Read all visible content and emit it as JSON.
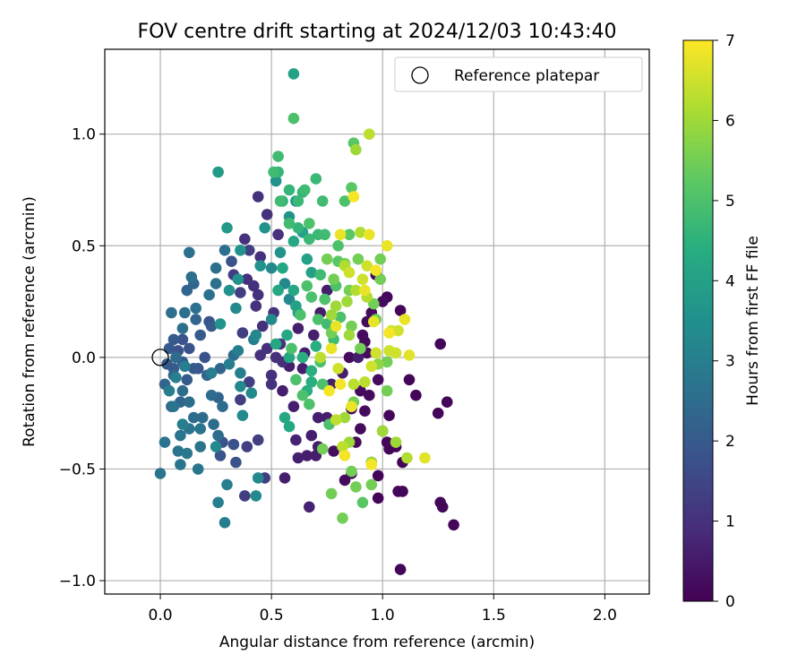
{
  "chart_data": {
    "type": "scatter",
    "title": "FOV centre drift starting at 2024/12/03 10:43:40",
    "xlabel": "Angular distance from reference (arcmin)",
    "ylabel": "Rotation from reference (arcmin)",
    "xlim": [
      -0.25,
      2.2
    ],
    "ylim": [
      -1.06,
      1.38
    ],
    "x_ticks": [
      0.0,
      0.5,
      1.0,
      1.5,
      2.0
    ],
    "x_tick_labels": [
      "0.0",
      "0.5",
      "1.0",
      "1.5",
      "2.0"
    ],
    "y_ticks": [
      -1.0,
      -0.5,
      0.0,
      0.5,
      1.0
    ],
    "y_tick_labels": [
      "−1.0",
      "−0.5",
      "0.0",
      "0.5",
      "1.0"
    ],
    "grid": true,
    "legend": {
      "placement": "top-right",
      "entries": [
        "Reference platepar"
      ]
    },
    "reference_point": {
      "x": 0.0,
      "y": 0.0
    },
    "colorbar": {
      "label": "Hours from first FF file",
      "colormap": "viridis",
      "range": [
        0,
        7
      ],
      "ticks": [
        "0",
        "1",
        "2",
        "3",
        "4",
        "5",
        "6",
        "7"
      ],
      "colors": [
        "#440154",
        "#472c7a",
        "#3b518b",
        "#2c718e",
        "#21908d",
        "#27ad81",
        "#5cc863",
        "#aadc32",
        "#fde725"
      ]
    },
    "columns": [
      "x",
      "y",
      "hours"
    ],
    "points": [
      [
        1.26,
        0.06,
        0.1
      ],
      [
        1.29,
        -0.2,
        0.1
      ],
      [
        1.32,
        -0.75,
        0.1
      ],
      [
        1.26,
        -0.65,
        0.1
      ],
      [
        1.27,
        -0.67,
        0.1
      ],
      [
        1.08,
        -0.95,
        0.1
      ],
      [
        1.09,
        -0.47,
        0.1
      ],
      [
        1.09,
        -0.6,
        0.1
      ],
      [
        1.07,
        -0.6,
        0.1
      ],
      [
        1.06,
        -0.4,
        0.1
      ],
      [
        1.02,
        -0.38,
        0.1
      ],
      [
        1.03,
        -0.41,
        0.1
      ],
      [
        0.98,
        -0.63,
        0.1
      ],
      [
        1.08,
        0.21,
        0.1
      ],
      [
        1.12,
        -0.1,
        0.1
      ],
      [
        1.25,
        -0.25,
        0.1
      ],
      [
        1.15,
        -0.17,
        0.1
      ],
      [
        1.03,
        -0.26,
        0.1
      ],
      [
        0.98,
        -0.53,
        0.1
      ],
      [
        1.02,
        0.27,
        0.1
      ],
      [
        1.0,
        0.25,
        0.2
      ],
      [
        0.95,
        -0.47,
        0.2
      ],
      [
        0.86,
        -0.52,
        0.2
      ],
      [
        0.83,
        -0.55,
        0.2
      ],
      [
        0.92,
        -0.24,
        0.2
      ],
      [
        0.94,
        -0.17,
        0.2
      ],
      [
        0.9,
        -0.32,
        0.2
      ],
      [
        0.88,
        -0.38,
        0.2
      ],
      [
        0.92,
        0.07,
        0.2
      ],
      [
        0.93,
        0.16,
        0.2
      ],
      [
        0.95,
        0.2,
        0.2
      ],
      [
        0.91,
        0.1,
        0.2
      ],
      [
        0.78,
        -0.42,
        0.2
      ],
      [
        0.86,
        -0.23,
        0.2
      ],
      [
        0.97,
        0.37,
        0.2
      ],
      [
        1.0,
        -0.33,
        0.2
      ],
      [
        0.98,
        -0.1,
        0.2
      ],
      [
        0.93,
        0.02,
        0.2
      ],
      [
        0.9,
        -0.15,
        0.2
      ],
      [
        0.85,
        0.0,
        0.2
      ],
      [
        0.89,
        0.0,
        0.6
      ],
      [
        0.82,
        -0.07,
        0.6
      ],
      [
        0.77,
        -0.12,
        0.6
      ],
      [
        0.71,
        -0.27,
        0.6
      ],
      [
        0.75,
        -0.27,
        0.6
      ],
      [
        0.71,
        -0.4,
        0.6
      ],
      [
        0.68,
        -0.35,
        0.6
      ],
      [
        0.66,
        -0.44,
        0.6
      ],
      [
        0.7,
        -0.44,
        0.6
      ],
      [
        0.62,
        -0.45,
        0.6
      ],
      [
        0.69,
        0.1,
        0.6
      ],
      [
        0.72,
        0.2,
        0.6
      ],
      [
        0.75,
        0.3,
        0.6
      ],
      [
        0.65,
        0.02,
        0.6
      ],
      [
        0.64,
        -0.05,
        0.6
      ],
      [
        0.6,
        -0.22,
        0.6
      ],
      [
        0.56,
        -0.54,
        0.6
      ],
      [
        0.55,
        -0.15,
        0.6
      ],
      [
        0.58,
        -0.04,
        0.6
      ],
      [
        0.62,
        0.13,
        0.6
      ],
      [
        0.67,
        -0.67,
        0.7
      ],
      [
        0.61,
        -0.37,
        0.7
      ],
      [
        0.5,
        -0.12,
        1.0
      ],
      [
        0.52,
        0.0,
        1.0
      ],
      [
        0.48,
        0.04,
        1.0
      ],
      [
        0.5,
        -0.08,
        1.0
      ],
      [
        0.45,
        0.01,
        1.0
      ],
      [
        0.54,
        0.06,
        1.0
      ],
      [
        0.55,
        -0.02,
        1.0
      ],
      [
        0.46,
        0.14,
        1.0
      ],
      [
        0.51,
        0.2,
        1.0
      ],
      [
        0.43,
        0.23,
        1.0
      ],
      [
        0.44,
        0.28,
        1.0
      ],
      [
        0.42,
        0.32,
        1.0
      ],
      [
        0.53,
        0.55,
        1.0
      ],
      [
        0.48,
        0.64,
        1.0
      ],
      [
        0.44,
        0.72,
        1.0
      ],
      [
        0.45,
        0.45,
        1.0
      ],
      [
        0.39,
        0.35,
        1.0
      ],
      [
        0.38,
        0.53,
        1.0
      ],
      [
        0.4,
        0.48,
        1.3
      ],
      [
        0.36,
        0.29,
        1.3
      ],
      [
        0.33,
        0.37,
        1.3
      ],
      [
        0.37,
        0.11,
        1.3
      ],
      [
        0.4,
        -0.11,
        1.3
      ],
      [
        0.36,
        -0.19,
        1.3
      ],
      [
        0.44,
        -0.37,
        1.3
      ],
      [
        0.47,
        -0.54,
        1.3
      ],
      [
        0.38,
        -0.62,
        1.3
      ],
      [
        0.39,
        -0.4,
        1.3
      ],
      [
        0.33,
        -0.39,
        1.8
      ],
      [
        0.28,
        -0.38,
        1.8
      ],
      [
        0.34,
        -0.47,
        1.8
      ],
      [
        0.27,
        -0.44,
        1.8
      ],
      [
        0.32,
        0.43,
        1.8
      ],
      [
        0.22,
        0.16,
        1.8
      ],
      [
        0.2,
        0.0,
        1.8
      ],
      [
        0.17,
        -0.05,
        1.8
      ],
      [
        0.13,
        0.04,
        1.8
      ],
      [
        0.1,
        0.08,
        1.8
      ],
      [
        0.08,
        0.03,
        1.8
      ],
      [
        0.1,
        -0.02,
        2.0
      ],
      [
        0.06,
        0.08,
        2.0
      ],
      [
        0.04,
        0.04,
        2.0
      ],
      [
        0.03,
        -0.03,
        2.0
      ],
      [
        0.06,
        -0.05,
        2.0
      ],
      [
        0.12,
        -0.1,
        2.0
      ],
      [
        0.15,
        -0.05,
        2.0
      ],
      [
        0.18,
        0.1,
        2.0
      ],
      [
        0.23,
        0.14,
        2.0
      ],
      [
        0.27,
        -0.05,
        2.3
      ],
      [
        0.26,
        -0.18,
        2.3
      ],
      [
        0.21,
        -0.08,
        2.3
      ],
      [
        0.16,
        0.17,
        2.3
      ],
      [
        0.15,
        0.33,
        2.3
      ],
      [
        0.12,
        0.3,
        2.3
      ],
      [
        0.09,
        -0.2,
        2.3
      ],
      [
        0.06,
        -0.08,
        2.3
      ],
      [
        0.02,
        -0.12,
        2.3
      ],
      [
        0.05,
        -0.22,
        2.3
      ],
      [
        0.07,
        0.0,
        2.5
      ],
      [
        0.1,
        -0.15,
        2.5
      ],
      [
        0.13,
        -0.2,
        2.5
      ],
      [
        0.15,
        -0.27,
        2.5
      ],
      [
        0.19,
        -0.27,
        2.5
      ],
      [
        0.23,
        -0.17,
        2.5
      ],
      [
        0.24,
        -0.3,
        2.5
      ],
      [
        0.26,
        -0.35,
        2.5
      ],
      [
        0.28,
        -0.22,
        2.5
      ],
      [
        0.33,
        0.01,
        2.5
      ],
      [
        0.11,
        0.2,
        2.6
      ],
      [
        0.05,
        0.2,
        2.6
      ],
      [
        0.1,
        0.13,
        2.6
      ],
      [
        0.16,
        0.22,
        2.6
      ],
      [
        0.22,
        0.28,
        2.6
      ],
      [
        0.25,
        0.33,
        2.6
      ],
      [
        0.29,
        0.48,
        2.6
      ],
      [
        0.25,
        0.4,
        2.6
      ],
      [
        0.14,
        0.36,
        2.6
      ],
      [
        0.13,
        0.47,
        2.6
      ],
      [
        0.18,
        -0.4,
        2.7
      ],
      [
        0.17,
        -0.5,
        2.7
      ],
      [
        0.08,
        -0.42,
        2.7
      ],
      [
        0.09,
        -0.48,
        2.7
      ],
      [
        0.13,
        -0.32,
        2.7
      ],
      [
        0.02,
        -0.38,
        2.7
      ],
      [
        0.0,
        -0.52,
        2.7
      ],
      [
        0.06,
        -0.22,
        2.7
      ],
      [
        0.09,
        -0.35,
        2.7
      ],
      [
        0.18,
        -0.32,
        2.7
      ],
      [
        0.12,
        -0.43,
        2.8
      ],
      [
        0.1,
        -0.3,
        3.0
      ],
      [
        0.07,
        -0.09,
        3.0
      ],
      [
        0.04,
        -0.15,
        3.0
      ],
      [
        0.11,
        -0.04,
        3.0
      ],
      [
        0.23,
        -0.07,
        3.0
      ],
      [
        0.31,
        -0.03,
        3.0
      ],
      [
        0.35,
        0.03,
        3.0
      ],
      [
        0.42,
        0.08,
        3.0
      ],
      [
        0.36,
        -0.07,
        3.0
      ],
      [
        0.26,
        -0.65,
        3.0
      ],
      [
        0.3,
        -0.57,
        3.0
      ],
      [
        0.29,
        -0.74,
        3.0
      ],
      [
        0.25,
        -0.4,
        3.3
      ],
      [
        0.34,
        0.22,
        3.3
      ],
      [
        0.43,
        -0.62,
        3.3
      ],
      [
        0.44,
        -0.54,
        3.3
      ],
      [
        0.37,
        -0.26,
        3.3
      ],
      [
        0.36,
        -0.13,
        3.3
      ],
      [
        0.41,
        -0.16,
        3.3
      ],
      [
        0.43,
        0.1,
        3.3
      ],
      [
        0.5,
        0.17,
        3.3
      ],
      [
        0.5,
        0.4,
        3.3
      ],
      [
        0.56,
        0.33,
        3.3
      ],
      [
        0.58,
        0.26,
        3.3
      ],
      [
        0.54,
        0.47,
        3.6
      ],
      [
        0.58,
        0.63,
        3.6
      ],
      [
        0.61,
        0.7,
        3.6
      ],
      [
        0.52,
        0.79,
        3.6
      ],
      [
        0.47,
        0.58,
        3.6
      ],
      [
        0.45,
        0.41,
        3.6
      ],
      [
        0.36,
        0.48,
        3.6
      ],
      [
        0.35,
        0.35,
        3.6
      ],
      [
        0.27,
        0.15,
        3.6
      ],
      [
        0.31,
        0.3,
        3.6
      ],
      [
        0.3,
        0.58,
        3.8
      ],
      [
        0.26,
        0.83,
        3.8
      ],
      [
        0.6,
        1.27,
        4.0
      ],
      [
        0.61,
        0.23,
        4.0
      ],
      [
        0.64,
        0.56,
        4.0
      ],
      [
        0.68,
        0.38,
        4.0
      ],
      [
        0.66,
        0.44,
        4.0
      ],
      [
        0.62,
        0.2,
        4.0
      ],
      [
        0.6,
        0.3,
        4.2
      ],
      [
        0.55,
        0.4,
        4.2
      ],
      [
        0.53,
        0.3,
        4.2
      ],
      [
        0.52,
        0.06,
        4.2
      ],
      [
        0.58,
        0.0,
        4.2
      ],
      [
        0.56,
        -0.27,
        4.2
      ],
      [
        0.58,
        -0.31,
        4.2
      ],
      [
        0.6,
        0.52,
        4.2
      ],
      [
        0.57,
        0.1,
        4.2
      ],
      [
        0.64,
        0.0,
        4.4
      ],
      [
        0.7,
        0.05,
        4.4
      ],
      [
        0.68,
        -0.11,
        4.4
      ],
      [
        0.66,
        -0.15,
        4.4
      ],
      [
        0.68,
        -0.06,
        4.4
      ],
      [
        0.55,
        0.7,
        4.5
      ],
      [
        0.53,
        0.83,
        4.6
      ],
      [
        0.58,
        0.75,
        4.6
      ],
      [
        0.62,
        0.58,
        4.6
      ],
      [
        0.64,
        0.74,
        4.6
      ],
      [
        0.7,
        0.8,
        4.7
      ],
      [
        0.67,
        0.53,
        4.7
      ],
      [
        0.71,
        0.55,
        4.7
      ],
      [
        0.62,
        0.7,
        4.7
      ],
      [
        0.53,
        0.9,
        4.8
      ],
      [
        0.54,
        0.7,
        4.8
      ],
      [
        0.58,
        0.6,
        4.8
      ],
      [
        0.51,
        0.83,
        4.8
      ],
      [
        0.65,
        0.75,
        4.8
      ],
      [
        0.73,
        0.7,
        4.8
      ],
      [
        0.74,
        0.55,
        4.8
      ],
      [
        0.72,
        0.37,
        4.8
      ],
      [
        0.75,
        0.15,
        4.8
      ],
      [
        0.78,
        0.08,
        4.8
      ],
      [
        0.83,
        0.7,
        5.0
      ],
      [
        0.8,
        0.5,
        5.0
      ],
      [
        0.6,
        1.07,
        5.0
      ],
      [
        0.71,
        0.17,
        5.0
      ],
      [
        0.67,
        0.6,
        5.0
      ],
      [
        0.63,
        0.19,
        5.0
      ],
      [
        0.68,
        0.27,
        5.0
      ],
      [
        0.66,
        0.32,
        5.0
      ],
      [
        0.59,
        0.04,
        5.0
      ],
      [
        0.61,
        -0.1,
        5.0
      ],
      [
        0.64,
        -0.17,
        5.0
      ],
      [
        0.67,
        -0.21,
        5.0
      ],
      [
        0.72,
        -0.02,
        5.0
      ],
      [
        0.73,
        -0.12,
        5.0
      ],
      [
        0.76,
        -0.3,
        5.0
      ],
      [
        0.74,
        0.26,
        5.0
      ],
      [
        0.79,
        0.32,
        5.0
      ],
      [
        0.81,
        0.18,
        5.0
      ],
      [
        0.8,
        0.43,
        5.2
      ],
      [
        0.85,
        0.55,
        5.2
      ],
      [
        0.86,
        0.76,
        5.2
      ],
      [
        0.87,
        0.96,
        5.2
      ],
      [
        0.91,
        -0.65,
        5.2
      ],
      [
        0.77,
        -0.61,
        5.5
      ],
      [
        0.82,
        -0.72,
        5.5
      ],
      [
        0.73,
        -0.41,
        5.5
      ],
      [
        0.77,
        0.11,
        5.5
      ],
      [
        0.78,
        0.35,
        5.5
      ],
      [
        0.75,
        0.44,
        5.5
      ],
      [
        0.83,
        0.42,
        5.5
      ],
      [
        0.85,
        0.3,
        5.5
      ],
      [
        0.86,
        0.14,
        5.5
      ],
      [
        0.89,
        0.44,
        5.5
      ],
      [
        0.9,
        0.04,
        5.5
      ],
      [
        0.87,
        -0.2,
        5.5
      ],
      [
        0.95,
        -0.57,
        5.5
      ],
      [
        0.88,
        -0.58,
        5.5
      ],
      [
        0.86,
        -0.51,
        5.5
      ],
      [
        0.99,
        0.44,
        5.5
      ],
      [
        0.99,
        0.35,
        5.5
      ],
      [
        0.96,
        0.24,
        5.5
      ],
      [
        0.97,
        0.17,
        5.5
      ],
      [
        1.02,
        -0.15,
        5.5
      ],
      [
        1.02,
        -0.02,
        5.5
      ],
      [
        0.98,
        -0.03,
        5.8
      ],
      [
        0.83,
        -0.27,
        6.0
      ],
      [
        0.79,
        0.23,
        6.0
      ],
      [
        0.77,
        0.19,
        6.0
      ],
      [
        0.85,
        0.1,
        6.0
      ],
      [
        0.88,
        0.93,
        6.0
      ],
      [
        0.84,
        0.25,
        6.0
      ],
      [
        0.85,
        -0.38,
        6.0
      ],
      [
        0.95,
        -0.47,
        6.0
      ],
      [
        1.0,
        -0.33,
        6.0
      ],
      [
        1.06,
        -0.38,
        6.0
      ],
      [
        1.11,
        -0.45,
        6.2
      ],
      [
        0.93,
        0.27,
        6.2
      ],
      [
        0.88,
        0.3,
        6.2
      ],
      [
        0.83,
        0.41,
        6.2
      ],
      [
        0.9,
        0.56,
        6.2
      ],
      [
        0.94,
        1.0,
        6.3
      ],
      [
        0.72,
        0.0,
        6.3
      ],
      [
        0.79,
        -0.28,
        6.3
      ],
      [
        0.82,
        -0.4,
        6.3
      ],
      [
        0.87,
        -0.12,
        6.3
      ],
      [
        0.92,
        -0.11,
        6.3
      ],
      [
        0.8,
        -0.05,
        6.5
      ],
      [
        0.85,
        0.38,
        6.5
      ],
      [
        0.91,
        0.35,
        6.5
      ],
      [
        0.93,
        0.41,
        6.5
      ],
      [
        0.95,
        -0.04,
        6.5
      ],
      [
        0.97,
        0.02,
        6.5
      ],
      [
        1.03,
        0.03,
        6.5
      ],
      [
        1.04,
        0.12,
        6.5
      ],
      [
        1.06,
        0.02,
        6.5
      ],
      [
        1.07,
        0.12,
        6.5
      ],
      [
        1.12,
        0.01,
        6.7
      ],
      [
        1.19,
        -0.45,
        6.7
      ],
      [
        1.1,
        0.17,
        6.8
      ],
      [
        1.02,
        0.5,
        6.8
      ],
      [
        0.92,
        0.3,
        6.8
      ],
      [
        0.96,
        0.16,
        6.8
      ],
      [
        0.86,
        -0.22,
        6.8
      ],
      [
        0.94,
        0.55,
        6.8
      ],
      [
        0.81,
        0.55,
        6.8
      ],
      [
        0.77,
        0.04,
        6.8
      ],
      [
        0.79,
        0.14,
        6.8
      ],
      [
        0.87,
        0.72,
        6.9
      ],
      [
        0.97,
        0.39,
        6.9
      ],
      [
        0.76,
        -0.15,
        6.9
      ],
      [
        0.81,
        -0.12,
        6.9
      ],
      [
        1.03,
        0.11,
        6.9
      ],
      [
        0.83,
        -0.44,
        6.9
      ],
      [
        0.95,
        -0.48,
        6.9
      ]
    ]
  }
}
